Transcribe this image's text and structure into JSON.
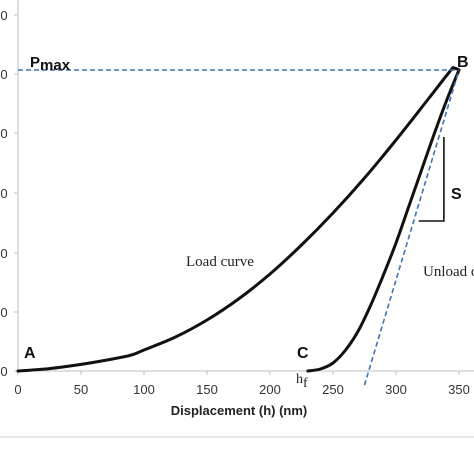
{
  "chart_data": {
    "type": "line",
    "xlabel": "Displacement (h) (nm)",
    "ylabel": "",
    "xlim": [
      0,
      360
    ],
    "x_ticks": [
      0,
      50,
      100,
      150,
      200,
      250,
      300,
      350
    ],
    "y_tick_labels": [
      "0",
      "0",
      "0",
      "0",
      "0",
      "0",
      "0"
    ],
    "grid": false,
    "colors": {
      "curve": "#111111",
      "dashed": "#3f74b5",
      "axis": "#bfbfbf"
    },
    "series": [
      {
        "points": [
          [
            0,
            0
          ],
          [
            25,
            1.2
          ],
          [
            50,
            3.3
          ],
          [
            75,
            6.0
          ],
          [
            90,
            8.0
          ],
          [
            100,
            10.5
          ],
          [
            125,
            17.0
          ],
          [
            150,
            25.5
          ],
          [
            175,
            36.0
          ],
          [
            200,
            48.5
          ],
          [
            225,
            63.0
          ],
          [
            250,
            79.0
          ],
          [
            275,
            96.5
          ],
          [
            300,
            115.5
          ],
          [
            325,
            135.5
          ],
          [
            343,
            150.0
          ],
          [
            346,
            151.5
          ],
          [
            350,
            150.5
          ]
        ]
      },
      {
        "points": [
          [
            350,
            150.5
          ],
          [
            340,
            135.0
          ],
          [
            330,
            118.0
          ],
          [
            320,
            100.0
          ],
          [
            310,
            82.0
          ],
          [
            300,
            64.0
          ],
          [
            290,
            48.0
          ],
          [
            280,
            33.0
          ],
          [
            270,
            20.0
          ],
          [
            260,
            10.5
          ],
          [
            250,
            4.0
          ],
          [
            240,
            1.0
          ],
          [
            230,
            0
          ]
        ]
      }
    ],
    "reference_lines": {
      "pmax_level": 150.5,
      "tangent_from": [
        275,
        0
      ],
      "tangent_to": [
        350,
        150.5
      ],
      "slope_triangle": {
        "x1": 318,
        "x2": 338,
        "y_low": 75,
        "y_high": 117
      }
    },
    "annotations": {
      "pmax_main": "P",
      "pmax_sub": "max",
      "point_a": "A",
      "point_b": "B",
      "point_c": "C",
      "slope_label": "S",
      "hf_main": "h",
      "hf_sub": "f",
      "load_curve": "Load curve",
      "unload_curve": "Unload c"
    }
  }
}
